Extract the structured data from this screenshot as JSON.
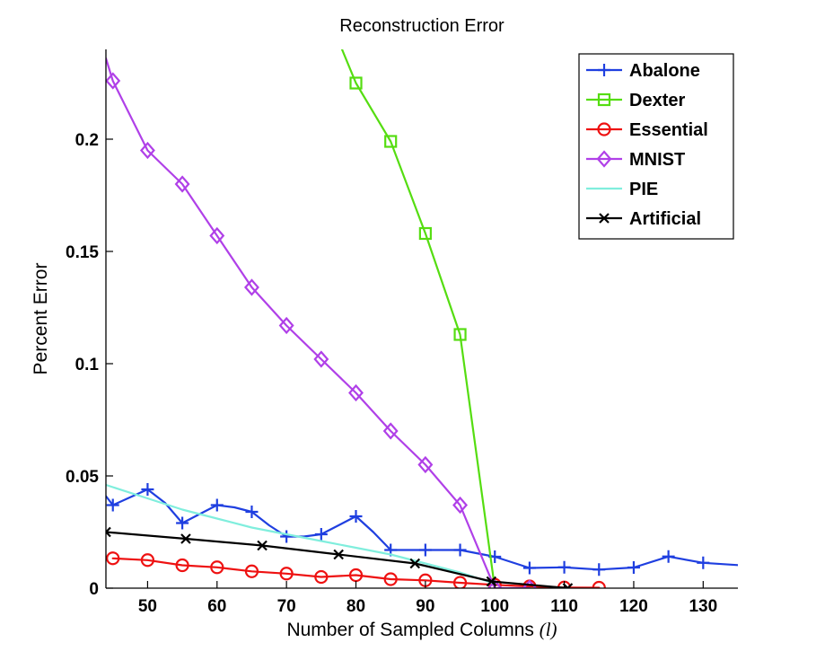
{
  "chart_data": {
    "type": "line",
    "title": "Reconstruction Error",
    "xlabel": "Number of Sampled Columns",
    "xlabel_var": "(l)",
    "ylabel": "Percent Error",
    "xlim": [
      44,
      135
    ],
    "ylim": [
      0,
      0.24
    ],
    "xticks": [
      50,
      60,
      70,
      80,
      90,
      100,
      110,
      120,
      130
    ],
    "xtick_labels": [
      "50",
      "60",
      "70",
      "80",
      "90",
      "100",
      "110",
      "120",
      "130"
    ],
    "yticks": [
      0,
      0.05,
      0.1,
      0.15,
      0.2
    ],
    "ytick_labels": [
      "0",
      "0.05",
      "0.1",
      "0.15",
      "0.2"
    ],
    "legend_position": "top-right",
    "series": [
      {
        "name": "Abalone",
        "color": "#1f3fe0",
        "marker": "plus",
        "points": [
          [
            44,
            0.041
          ],
          [
            45,
            0.037
          ],
          [
            50,
            0.044
          ],
          [
            52.5,
            0.038
          ],
          [
            55,
            0.029
          ],
          [
            57.5,
            0.033
          ],
          [
            60,
            0.037
          ],
          [
            62.5,
            0.036
          ],
          [
            65,
            0.034
          ],
          [
            67.5,
            0.028
          ],
          [
            70,
            0.023
          ],
          [
            72.5,
            0.023
          ],
          [
            75,
            0.024
          ],
          [
            77.5,
            0.028
          ],
          [
            80,
            0.032
          ],
          [
            82.5,
            0.025
          ],
          [
            85,
            0.017
          ],
          [
            90,
            0.017
          ],
          [
            95,
            0.017
          ],
          [
            100,
            0.014
          ],
          [
            105,
            0.009
          ],
          [
            110,
            0.0093
          ],
          [
            115,
            0.0083
          ],
          [
            120,
            0.0092
          ],
          [
            125,
            0.0141
          ],
          [
            130,
            0.0113
          ],
          [
            135,
            0.0103
          ]
        ],
        "marker_x": [
          45,
          50,
          55,
          60,
          65,
          70,
          75,
          80,
          85,
          90,
          95,
          100,
          105,
          110,
          115,
          120,
          125,
          130
        ]
      },
      {
        "name": "Dexter",
        "color": "#55dd11",
        "marker": "square",
        "points": [
          [
            78,
            0.24
          ],
          [
            80,
            0.225
          ],
          [
            85,
            0.199
          ],
          [
            90,
            0.158
          ],
          [
            95,
            0.113
          ],
          [
            100,
            0.0
          ]
        ],
        "marker_x": [
          80,
          85,
          90,
          95
        ]
      },
      {
        "name": "Essential",
        "color": "#ee1111",
        "marker": "circle",
        "points": [
          [
            45,
            0.0133
          ],
          [
            50,
            0.0125
          ],
          [
            55,
            0.0102
          ],
          [
            60,
            0.0093
          ],
          [
            65,
            0.0075
          ],
          [
            70,
            0.0065
          ],
          [
            75,
            0.005
          ],
          [
            80,
            0.0058
          ],
          [
            85,
            0.004
          ],
          [
            90,
            0.0035
          ],
          [
            95,
            0.0024
          ],
          [
            100,
            0.0015
          ],
          [
            105,
            0.0008
          ],
          [
            110,
            0.0003
          ],
          [
            115,
            0.0002
          ]
        ],
        "marker_x": [
          45,
          50,
          55,
          60,
          65,
          70,
          75,
          80,
          85,
          90,
          95,
          100,
          105,
          110,
          115
        ]
      },
      {
        "name": "MNIST",
        "color": "#b040e8",
        "marker": "diamond",
        "points": [
          [
            44,
            0.236
          ],
          [
            45,
            0.226
          ],
          [
            50,
            0.195
          ],
          [
            55,
            0.18
          ],
          [
            60,
            0.157
          ],
          [
            65,
            0.134
          ],
          [
            70,
            0.117
          ],
          [
            75,
            0.102
          ],
          [
            80,
            0.087
          ],
          [
            85,
            0.07
          ],
          [
            90,
            0.055
          ],
          [
            95,
            0.037
          ],
          [
            100,
            0.0
          ],
          [
            105,
            0.0
          ]
        ],
        "marker_x": [
          45,
          50,
          55,
          60,
          65,
          70,
          75,
          80,
          85,
          90,
          95,
          100,
          105
        ]
      },
      {
        "name": "PIE",
        "color": "#80eedd",
        "marker": "none",
        "points": [
          [
            44,
            0.046
          ],
          [
            50,
            0.04
          ],
          [
            55,
            0.035
          ],
          [
            60,
            0.031
          ],
          [
            65,
            0.027
          ],
          [
            70,
            0.024
          ],
          [
            75,
            0.021
          ],
          [
            80,
            0.018
          ],
          [
            85,
            0.015
          ],
          [
            90,
            0.011
          ],
          [
            95,
            0.007
          ],
          [
            100,
            0.002
          ]
        ],
        "marker_x": []
      },
      {
        "name": "Artificial",
        "color": "#000000",
        "marker": "x",
        "points": [
          [
            44,
            0.025
          ],
          [
            55.5,
            0.022
          ],
          [
            66.5,
            0.019
          ],
          [
            77.5,
            0.015
          ],
          [
            88.5,
            0.011
          ],
          [
            99.5,
            0.003
          ],
          [
            110.5,
            0.0
          ]
        ],
        "marker_x": [
          44,
          55.5,
          66.5,
          77.5,
          88.5,
          99.5,
          110.5
        ]
      }
    ]
  }
}
